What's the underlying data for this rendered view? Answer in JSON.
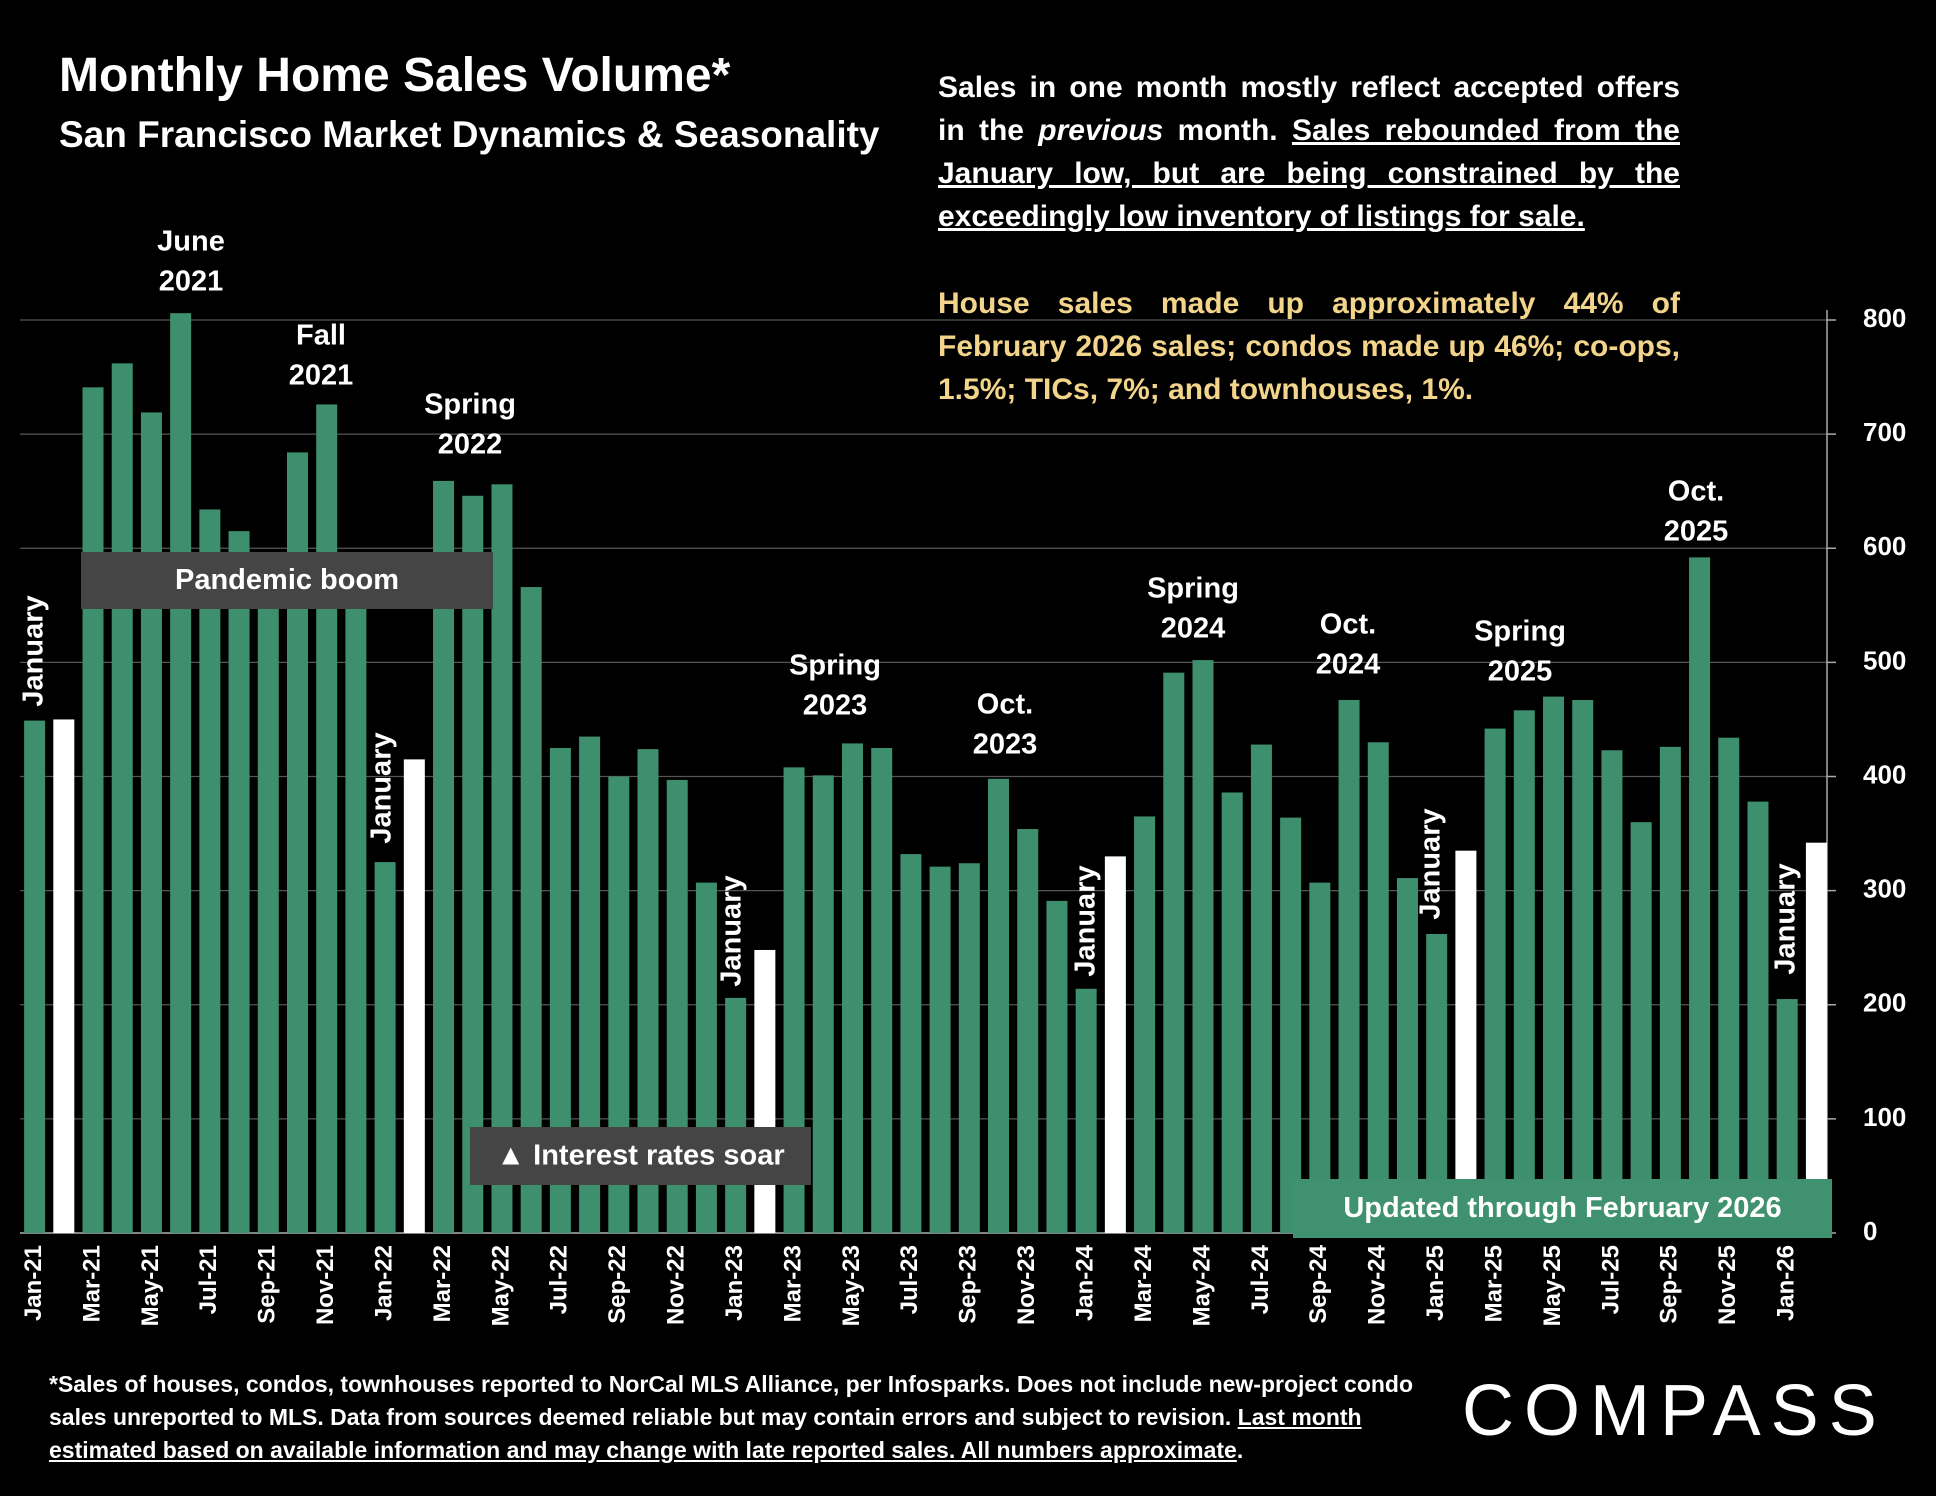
{
  "chart_data": {
    "type": "bar",
    "title": "Monthly Home Sales Volume*",
    "subtitle": "San Francisco Market Dynamics & Seasonality",
    "categories": [
      "Jan-21",
      null,
      "Mar-21",
      null,
      "May-21",
      null,
      "Jul-21",
      null,
      "Sep-21",
      null,
      "Nov-21",
      null,
      "Jan-22",
      null,
      "Mar-22",
      null,
      "May-22",
      null,
      "Jul-22",
      null,
      "Sep-22",
      null,
      "Nov-22",
      null,
      "Jan-23",
      null,
      "Mar-23",
      null,
      "May-23",
      null,
      "Jul-23",
      null,
      "Sep-23",
      null,
      "Nov-23",
      null,
      "Jan-24",
      null,
      "Mar-24",
      null,
      "May-24",
      null,
      "Jul-24",
      null,
      "Sep-24",
      null,
      "Nov-24",
      null,
      "Jan-25",
      null,
      "Mar-25",
      null,
      "May-25",
      null,
      "Jul-25",
      null,
      "Sep-25",
      null,
      "Nov-25",
      null,
      "Jan-26",
      null
    ],
    "values": [
      449,
      450,
      741,
      762,
      719,
      806,
      634,
      615,
      575,
      684,
      726,
      550,
      325,
      415,
      659,
      646,
      656,
      566,
      425,
      435,
      400,
      424,
      397,
      307,
      206,
      248,
      408,
      401,
      429,
      425,
      332,
      321,
      324,
      398,
      354,
      291,
      214,
      330,
      365,
      491,
      502,
      386,
      428,
      364,
      307,
      467,
      430,
      311,
      262,
      335,
      442,
      458,
      470,
      467,
      423,
      360,
      426,
      592,
      434,
      378,
      205,
      342
    ],
    "colors": [
      "#3e8f6d",
      "#ffffff",
      "#3e8f6d",
      "#3e8f6d",
      "#3e8f6d",
      "#3e8f6d",
      "#3e8f6d",
      "#3e8f6d",
      "#3e8f6d",
      "#3e8f6d",
      "#3e8f6d",
      "#3e8f6d",
      "#3e8f6d",
      "#ffffff",
      "#3e8f6d",
      "#3e8f6d",
      "#3e8f6d",
      "#3e8f6d",
      "#3e8f6d",
      "#3e8f6d",
      "#3e8f6d",
      "#3e8f6d",
      "#3e8f6d",
      "#3e8f6d",
      "#3e8f6d",
      "#ffffff",
      "#3e8f6d",
      "#3e8f6d",
      "#3e8f6d",
      "#3e8f6d",
      "#3e8f6d",
      "#3e8f6d",
      "#3e8f6d",
      "#3e8f6d",
      "#3e8f6d",
      "#3e8f6d",
      "#3e8f6d",
      "#ffffff",
      "#3e8f6d",
      "#3e8f6d",
      "#3e8f6d",
      "#3e8f6d",
      "#3e8f6d",
      "#3e8f6d",
      "#3e8f6d",
      "#3e8f6d",
      "#3e8f6d",
      "#3e8f6d",
      "#3e8f6d",
      "#ffffff",
      "#3e8f6d",
      "#3e8f6d",
      "#3e8f6d",
      "#3e8f6d",
      "#3e8f6d",
      "#3e8f6d",
      "#3e8f6d",
      "#3e8f6d",
      "#3e8f6d",
      "#3e8f6d",
      "#3e8f6d",
      "#ffffff"
    ],
    "ylim": [
      0,
      800
    ],
    "yticks": [
      0,
      100,
      200,
      300,
      400,
      500,
      600,
      700,
      800
    ],
    "y_axis_side": "right",
    "grid": true,
    "annotations": [
      [
        "June",
        "2021"
      ],
      [
        "Fall",
        "2021"
      ],
      [
        "Spring",
        "2022"
      ],
      [
        "Spring",
        "2023"
      ],
      [
        "Oct.",
        "2023"
      ],
      [
        "Spring",
        "2024"
      ],
      [
        "Oct.",
        "2024"
      ],
      [
        "Spring",
        "2025"
      ],
      [
        "Oct.",
        "2025"
      ]
    ],
    "january_labels": [
      "January",
      "January",
      "January",
      "January",
      "January",
      "January"
    ],
    "callouts": [
      "Pandemic boom",
      "▲ Interest rates soar",
      "Updated through February 2026"
    ],
    "notes": [
      [
        {
          "text": "Sales in one month mostly reflect accepted offers in the "
        },
        {
          "text": "previous",
          "italic": true
        },
        {
          "text": " month. "
        },
        {
          "text": "Sales rebounded from the January low, but are being constrained by the exceedingly low inventory of listings for sale.",
          "underline": true
        }
      ],
      [
        {
          "text": "House sales made up approximately 44% of February 2026 sales; condos made up 46%; co-ops, 1.5%; TICs, 7%; and townhouses, 1%.",
          "color": "#f3d48b"
        }
      ]
    ],
    "footnote": [
      {
        "text": "*Sales of houses, condos, townhouses reported to NorCal MLS Alliance, per Infosparks. Does not include new-project condo sales unreported to MLS. Data from sources deemed reliable but may contain errors and subject to revision. "
      },
      {
        "text": "Last month estimated based on available information and may change with late reported sales. All numbers approximate",
        "underline": true
      },
      {
        "text": "."
      }
    ],
    "logo": "COMPASS"
  }
}
